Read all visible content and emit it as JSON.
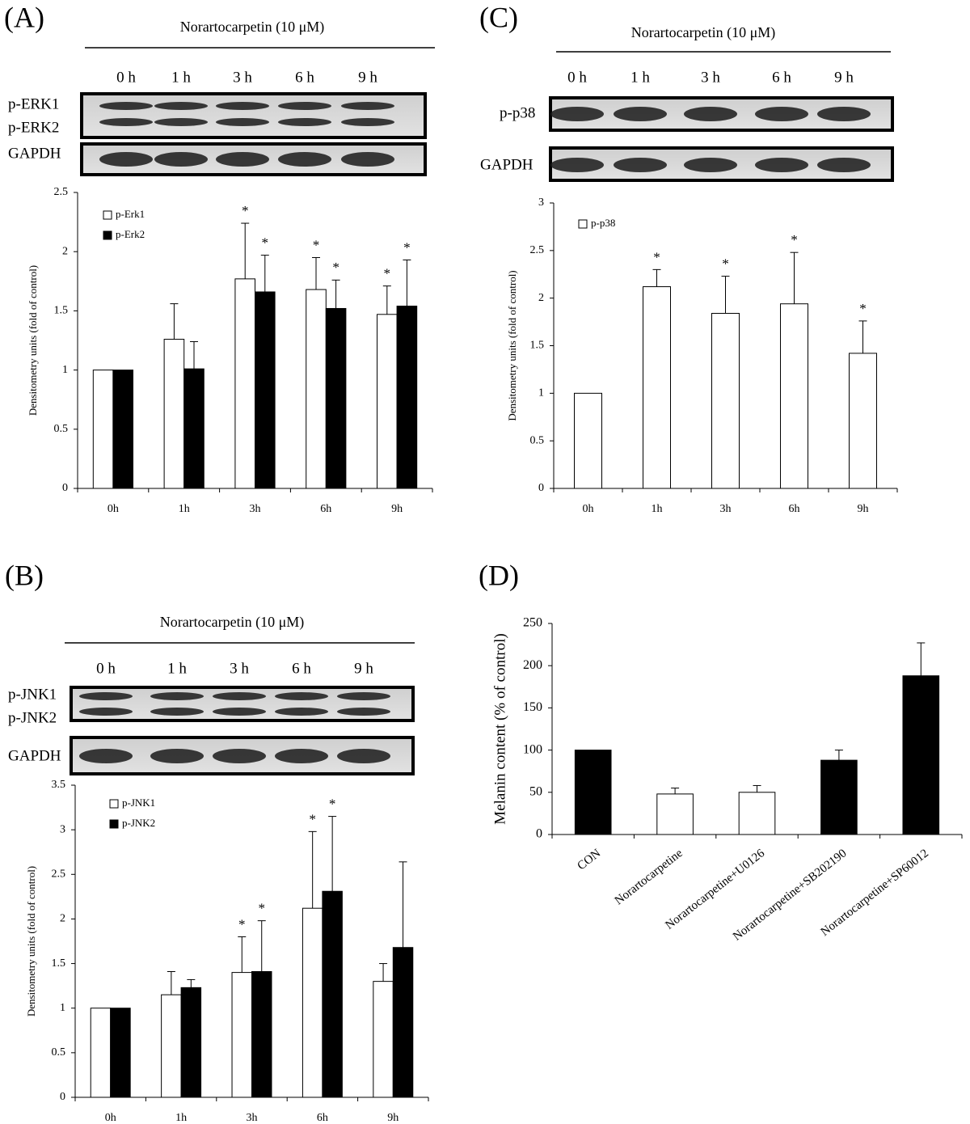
{
  "chart_data": [
    {
      "type": "bar",
      "panel": "(A)",
      "treatment": "Norartocarpetin (10 μM)",
      "lanes": [
        "0 h",
        "1 h",
        "3 h",
        "6 h",
        "9 h"
      ],
      "blot_labels": [
        "p-ERK1",
        "p-ERK2",
        "GAPDH"
      ],
      "categories": [
        "0h",
        "1h",
        "3h",
        "6h",
        "9h"
      ],
      "ylabel": "Densitometry units (fold of control)",
      "ylim": [
        0,
        2.5
      ],
      "yticks": [
        0,
        0.5,
        1,
        1.5,
        2,
        2.5
      ],
      "legend": "upper left",
      "series": [
        {
          "name": "p-Erk1",
          "color": "#ffffff",
          "values": [
            1,
            1.26,
            1.77,
            1.68,
            1.47
          ],
          "errors": [
            0,
            0.3,
            0.47,
            0.27,
            0.24
          ],
          "significance": [
            null,
            null,
            "*",
            "*",
            "*"
          ]
        },
        {
          "name": "p-Erk2",
          "color": "#000000",
          "values": [
            1,
            1.01,
            1.66,
            1.52,
            1.54
          ],
          "errors": [
            0,
            0.23,
            0.31,
            0.24,
            0.39
          ],
          "significance": [
            null,
            null,
            "*",
            "*",
            "*"
          ]
        }
      ]
    },
    {
      "type": "bar",
      "panel": "(B)",
      "treatment": "Norartocarpetin (10 μM)",
      "lanes": [
        "0 h",
        "1 h",
        "3 h",
        "6 h",
        "9 h"
      ],
      "blot_labels": [
        "p-JNK1",
        "p-JNK2",
        "GAPDH"
      ],
      "categories": [
        "0h",
        "1h",
        "3h",
        "6h",
        "9h"
      ],
      "ylabel": "Densitometry units (fold of control)",
      "ylim": [
        0,
        3.5
      ],
      "yticks": [
        0,
        0.5,
        1,
        1.5,
        2,
        2.5,
        3,
        3.5
      ],
      "legend": "upper left",
      "series": [
        {
          "name": "p-JNK1",
          "color": "#ffffff",
          "values": [
            1,
            1.15,
            1.4,
            2.12,
            1.3
          ],
          "errors": [
            0,
            0.26,
            0.4,
            0.86,
            0.2
          ],
          "significance": [
            null,
            null,
            "*",
            "*",
            null
          ]
        },
        {
          "name": "p-JNK2",
          "color": "#000000",
          "values": [
            1,
            1.23,
            1.41,
            2.31,
            1.68
          ],
          "errors": [
            0,
            0.09,
            0.57,
            0.84,
            0.96
          ],
          "significance": [
            null,
            null,
            "*",
            "*",
            null
          ]
        }
      ]
    },
    {
      "type": "bar",
      "panel": "(C)",
      "treatment": "Norartocarpetin (10 μM)",
      "lanes": [
        "0 h",
        "1 h",
        "3 h",
        "6 h",
        "9 h"
      ],
      "blot_labels": [
        "p-p38",
        "GAPDH"
      ],
      "categories": [
        "0h",
        "1h",
        "3h",
        "6h",
        "9h"
      ],
      "ylabel": "Densitometry units (fold of control)",
      "ylim": [
        0,
        3
      ],
      "yticks": [
        0,
        0.5,
        1,
        1.5,
        2,
        2.5,
        3
      ],
      "legend": "upper left",
      "series": [
        {
          "name": "p-p38",
          "color": "#ffffff",
          "values": [
            1,
            2.12,
            1.84,
            1.94,
            1.42
          ],
          "errors": [
            0,
            0.18,
            0.39,
            0.54,
            0.34
          ],
          "significance": [
            null,
            "*",
            "*",
            "*",
            "*"
          ]
        }
      ]
    },
    {
      "type": "bar",
      "panel": "(D)",
      "categories": [
        "CON",
        "Norartocarpetine",
        "Norartocarpetine+U0126",
        "Norartocarpetine+SB202190",
        "Norartocarpetine+SP60012"
      ],
      "ylabel": "Melanin content (% of control)",
      "ylim": [
        0,
        250
      ],
      "yticks": [
        0,
        50,
        100,
        150,
        200,
        250
      ],
      "values": [
        100,
        48,
        50,
        88,
        188
      ],
      "errors": [
        0,
        7,
        8,
        12,
        39
      ],
      "colors": [
        "#000000",
        "#ffffff",
        "#ffffff",
        "#000000",
        "#000000"
      ]
    }
  ]
}
